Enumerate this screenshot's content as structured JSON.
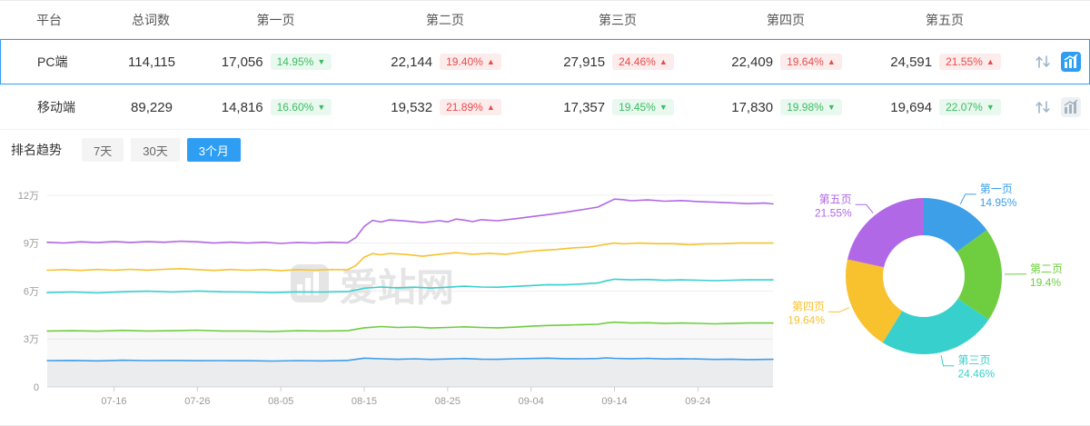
{
  "accent": "#2e9ef3",
  "watermark": {
    "text": "爱站网"
  },
  "table": {
    "headers": [
      "平台",
      "总词数",
      "第一页",
      "第二页",
      "第三页",
      "第四页",
      "第五页"
    ],
    "rows": [
      {
        "platform": "PC端",
        "total": "114,115",
        "selected": true,
        "pages": [
          {
            "count": "17,056",
            "pct": "14.95%",
            "dir": "down",
            "arrow": "▼"
          },
          {
            "count": "22,144",
            "pct": "19.40%",
            "dir": "up",
            "arrow": "▲"
          },
          {
            "count": "27,915",
            "pct": "24.46%",
            "dir": "up",
            "arrow": "▲"
          },
          {
            "count": "22,409",
            "pct": "19.64%",
            "dir": "up",
            "arrow": "▲"
          },
          {
            "count": "24,591",
            "pct": "21.55%",
            "dir": "up",
            "arrow": "▲"
          }
        ]
      },
      {
        "platform": "移动端",
        "total": "89,229",
        "selected": false,
        "pages": [
          {
            "count": "14,816",
            "pct": "16.60%",
            "dir": "down",
            "arrow": "▼"
          },
          {
            "count": "19,532",
            "pct": "21.89%",
            "dir": "up",
            "arrow": "▲"
          },
          {
            "count": "17,357",
            "pct": "19.45%",
            "dir": "down",
            "arrow": "▼"
          },
          {
            "count": "17,830",
            "pct": "19.98%",
            "dir": "down",
            "arrow": "▼"
          },
          {
            "count": "19,694",
            "pct": "22.07%",
            "dir": "down",
            "arrow": "▼"
          }
        ]
      }
    ]
  },
  "trend": {
    "title": "排名趋势",
    "tabs": [
      {
        "label": "7天",
        "active": false
      },
      {
        "label": "30天",
        "active": false
      },
      {
        "label": "3个月",
        "active": true
      }
    ]
  },
  "chart_data": [
    {
      "type": "line",
      "x_max": 87,
      "y_max": 12.9,
      "y_unit": "万",
      "xticks": [
        {
          "day": 8,
          "label": "07-16"
        },
        {
          "day": 18,
          "label": "07-26"
        },
        {
          "day": 28,
          "label": "08-05"
        },
        {
          "day": 38,
          "label": "08-15"
        },
        {
          "day": 48,
          "label": "08-25"
        },
        {
          "day": 58,
          "label": "09-04"
        },
        {
          "day": 68,
          "label": "09-14"
        },
        {
          "day": 78,
          "label": "09-24"
        }
      ],
      "yticks": [
        {
          "value": 0,
          "label": "0"
        },
        {
          "value": 3,
          "label": "3万"
        },
        {
          "value": 6,
          "label": "6万"
        },
        {
          "value": 9,
          "label": "9万"
        },
        {
          "value": 12,
          "label": "12万"
        }
      ],
      "series": [
        {
          "name": "第一页",
          "color": "#3e9fe9",
          "fill": "rgba(130,140,150,0.10)",
          "points": [
            [
              0,
              1.65
            ],
            [
              3,
              1.66
            ],
            [
              6,
              1.63
            ],
            [
              9,
              1.67
            ],
            [
              12,
              1.65
            ],
            [
              15,
              1.66
            ],
            [
              18,
              1.64
            ],
            [
              21,
              1.65
            ],
            [
              24,
              1.64
            ],
            [
              27,
              1.62
            ],
            [
              30,
              1.65
            ],
            [
              33,
              1.63
            ],
            [
              36,
              1.66
            ],
            [
              38,
              1.8
            ],
            [
              40,
              1.76
            ],
            [
              42,
              1.73
            ],
            [
              44,
              1.76
            ],
            [
              46,
              1.72
            ],
            [
              48,
              1.75
            ],
            [
              50,
              1.78
            ],
            [
              52,
              1.74
            ],
            [
              54,
              1.73
            ],
            [
              56,
              1.76
            ],
            [
              58,
              1.78
            ],
            [
              60,
              1.8
            ],
            [
              62,
              1.77
            ],
            [
              64,
              1.76
            ],
            [
              66,
              1.78
            ],
            [
              67,
              1.82
            ],
            [
              68,
              1.79
            ],
            [
              70,
              1.77
            ],
            [
              72,
              1.79
            ],
            [
              74,
              1.75
            ],
            [
              76,
              1.77
            ],
            [
              78,
              1.75
            ],
            [
              80,
              1.72
            ],
            [
              82,
              1.74
            ],
            [
              84,
              1.71
            ],
            [
              87,
              1.73
            ]
          ]
        },
        {
          "name": "第二页",
          "color": "#6fce3f",
          "fill": "rgba(130,140,150,0.06)",
          "points": [
            [
              0,
              3.5
            ],
            [
              3,
              3.52
            ],
            [
              6,
              3.49
            ],
            [
              9,
              3.54
            ],
            [
              12,
              3.5
            ],
            [
              15,
              3.52
            ],
            [
              18,
              3.55
            ],
            [
              21,
              3.5
            ],
            [
              24,
              3.5
            ],
            [
              27,
              3.47
            ],
            [
              30,
              3.52
            ],
            [
              33,
              3.5
            ],
            [
              36,
              3.52
            ],
            [
              38,
              3.7
            ],
            [
              40,
              3.78
            ],
            [
              42,
              3.72
            ],
            [
              44,
              3.75
            ],
            [
              46,
              3.69
            ],
            [
              48,
              3.72
            ],
            [
              50,
              3.76
            ],
            [
              52,
              3.72
            ],
            [
              54,
              3.7
            ],
            [
              56,
              3.74
            ],
            [
              58,
              3.8
            ],
            [
              60,
              3.85
            ],
            [
              62,
              3.87
            ],
            [
              64,
              3.9
            ],
            [
              66,
              3.92
            ],
            [
              67,
              4.0
            ],
            [
              68,
              4.05
            ],
            [
              70,
              4.0
            ],
            [
              72,
              4.02
            ],
            [
              74,
              3.97
            ],
            [
              76,
              4.0
            ],
            [
              78,
              3.98
            ],
            [
              80,
              3.95
            ],
            [
              82,
              3.97
            ],
            [
              84,
              4.0
            ],
            [
              87,
              4.0
            ]
          ]
        },
        {
          "name": "第三页",
          "color": "#38d0cc",
          "points": [
            [
              0,
              5.9
            ],
            [
              3,
              5.94
            ],
            [
              6,
              5.89
            ],
            [
              9,
              5.95
            ],
            [
              12,
              5.99
            ],
            [
              15,
              5.94
            ],
            [
              18,
              6.0
            ],
            [
              21,
              5.95
            ],
            [
              24,
              5.94
            ],
            [
              27,
              5.9
            ],
            [
              30,
              5.95
            ],
            [
              33,
              5.94
            ],
            [
              36,
              5.96
            ],
            [
              38,
              6.18
            ],
            [
              40,
              6.25
            ],
            [
              42,
              6.2
            ],
            [
              44,
              6.24
            ],
            [
              46,
              6.19
            ],
            [
              48,
              6.24
            ],
            [
              50,
              6.3
            ],
            [
              52,
              6.25
            ],
            [
              54,
              6.24
            ],
            [
              56,
              6.29
            ],
            [
              58,
              6.34
            ],
            [
              60,
              6.4
            ],
            [
              62,
              6.39
            ],
            [
              64,
              6.44
            ],
            [
              66,
              6.5
            ],
            [
              67,
              6.64
            ],
            [
              68,
              6.74
            ],
            [
              70,
              6.7
            ],
            [
              72,
              6.72
            ],
            [
              74,
              6.67
            ],
            [
              76,
              6.7
            ],
            [
              78,
              6.68
            ],
            [
              80,
              6.65
            ],
            [
              82,
              6.68
            ],
            [
              84,
              6.7
            ],
            [
              87,
              6.7
            ]
          ]
        },
        {
          "name": "第四页",
          "color": "#f7c22e",
          "points": [
            [
              0,
              7.3
            ],
            [
              2,
              7.34
            ],
            [
              4,
              7.29
            ],
            [
              6,
              7.35
            ],
            [
              8,
              7.3
            ],
            [
              10,
              7.36
            ],
            [
              12,
              7.31
            ],
            [
              14,
              7.36
            ],
            [
              16,
              7.4
            ],
            [
              18,
              7.34
            ],
            [
              20,
              7.29
            ],
            [
              22,
              7.35
            ],
            [
              24,
              7.3
            ],
            [
              26,
              7.34
            ],
            [
              28,
              7.28
            ],
            [
              30,
              7.34
            ],
            [
              32,
              7.3
            ],
            [
              34,
              7.35
            ],
            [
              36,
              7.33
            ],
            [
              37,
              7.6
            ],
            [
              38,
              8.12
            ],
            [
              39,
              8.34
            ],
            [
              40,
              8.27
            ],
            [
              41,
              8.35
            ],
            [
              43,
              8.29
            ],
            [
              45,
              8.18
            ],
            [
              47,
              8.3
            ],
            [
              49,
              8.4
            ],
            [
              51,
              8.3
            ],
            [
              53,
              8.36
            ],
            [
              55,
              8.3
            ],
            [
              57,
              8.44
            ],
            [
              59,
              8.54
            ],
            [
              61,
              8.6
            ],
            [
              63,
              8.7
            ],
            [
              65,
              8.76
            ],
            [
              67,
              8.92
            ],
            [
              68,
              9.0
            ],
            [
              69,
              8.95
            ],
            [
              71,
              9.0
            ],
            [
              73,
              8.96
            ],
            [
              75,
              8.96
            ],
            [
              77,
              8.9
            ],
            [
              79,
              8.95
            ],
            [
              81,
              8.96
            ],
            [
              83,
              9.0
            ],
            [
              85,
              9.0
            ],
            [
              87,
              9.0
            ]
          ]
        },
        {
          "name": "第五页",
          "color": "#b168e6",
          "points": [
            [
              0,
              9.05
            ],
            [
              2,
              9.0
            ],
            [
              4,
              9.08
            ],
            [
              6,
              9.03
            ],
            [
              8,
              9.1
            ],
            [
              10,
              9.04
            ],
            [
              12,
              9.1
            ],
            [
              14,
              9.05
            ],
            [
              16,
              9.12
            ],
            [
              18,
              9.08
            ],
            [
              20,
              9.0
            ],
            [
              22,
              9.06
            ],
            [
              24,
              9.0
            ],
            [
              26,
              9.05
            ],
            [
              28,
              8.98
            ],
            [
              30,
              9.04
            ],
            [
              32,
              9.0
            ],
            [
              34,
              9.05
            ],
            [
              36,
              9.02
            ],
            [
              37,
              9.35
            ],
            [
              38,
              10.05
            ],
            [
              39,
              10.42
            ],
            [
              40,
              10.32
            ],
            [
              41,
              10.45
            ],
            [
              43,
              10.38
            ],
            [
              45,
              10.28
            ],
            [
              47,
              10.4
            ],
            [
              48,
              10.33
            ],
            [
              49,
              10.5
            ],
            [
              50,
              10.44
            ],
            [
              51,
              10.34
            ],
            [
              52,
              10.46
            ],
            [
              54,
              10.4
            ],
            [
              56,
              10.52
            ],
            [
              58,
              10.65
            ],
            [
              60,
              10.78
            ],
            [
              62,
              10.92
            ],
            [
              64,
              11.08
            ],
            [
              66,
              11.25
            ],
            [
              67,
              11.5
            ],
            [
              68,
              11.75
            ],
            [
              69,
              11.72
            ],
            [
              70,
              11.65
            ],
            [
              72,
              11.7
            ],
            [
              74,
              11.62
            ],
            [
              76,
              11.66
            ],
            [
              78,
              11.6
            ],
            [
              80,
              11.56
            ],
            [
              82,
              11.52
            ],
            [
              84,
              11.47
            ],
            [
              86,
              11.5
            ],
            [
              87,
              11.45
            ]
          ]
        }
      ]
    },
    {
      "type": "pie",
      "donut": true,
      "slices": [
        {
          "label": "第一页",
          "pct": "14.95%",
          "value": 14.95,
          "color": "#3e9fe9"
        },
        {
          "label": "第二页",
          "pct": "19.4%",
          "value": 19.4,
          "color": "#6fce3f"
        },
        {
          "label": "第三页",
          "pct": "24.46%",
          "value": 24.46,
          "color": "#38d0cc"
        },
        {
          "label": "第四页",
          "pct": "19.64%",
          "value": 19.64,
          "color": "#f7c22e"
        },
        {
          "label": "第五页",
          "pct": "21.55%",
          "value": 21.55,
          "color": "#b168e6"
        }
      ]
    }
  ]
}
